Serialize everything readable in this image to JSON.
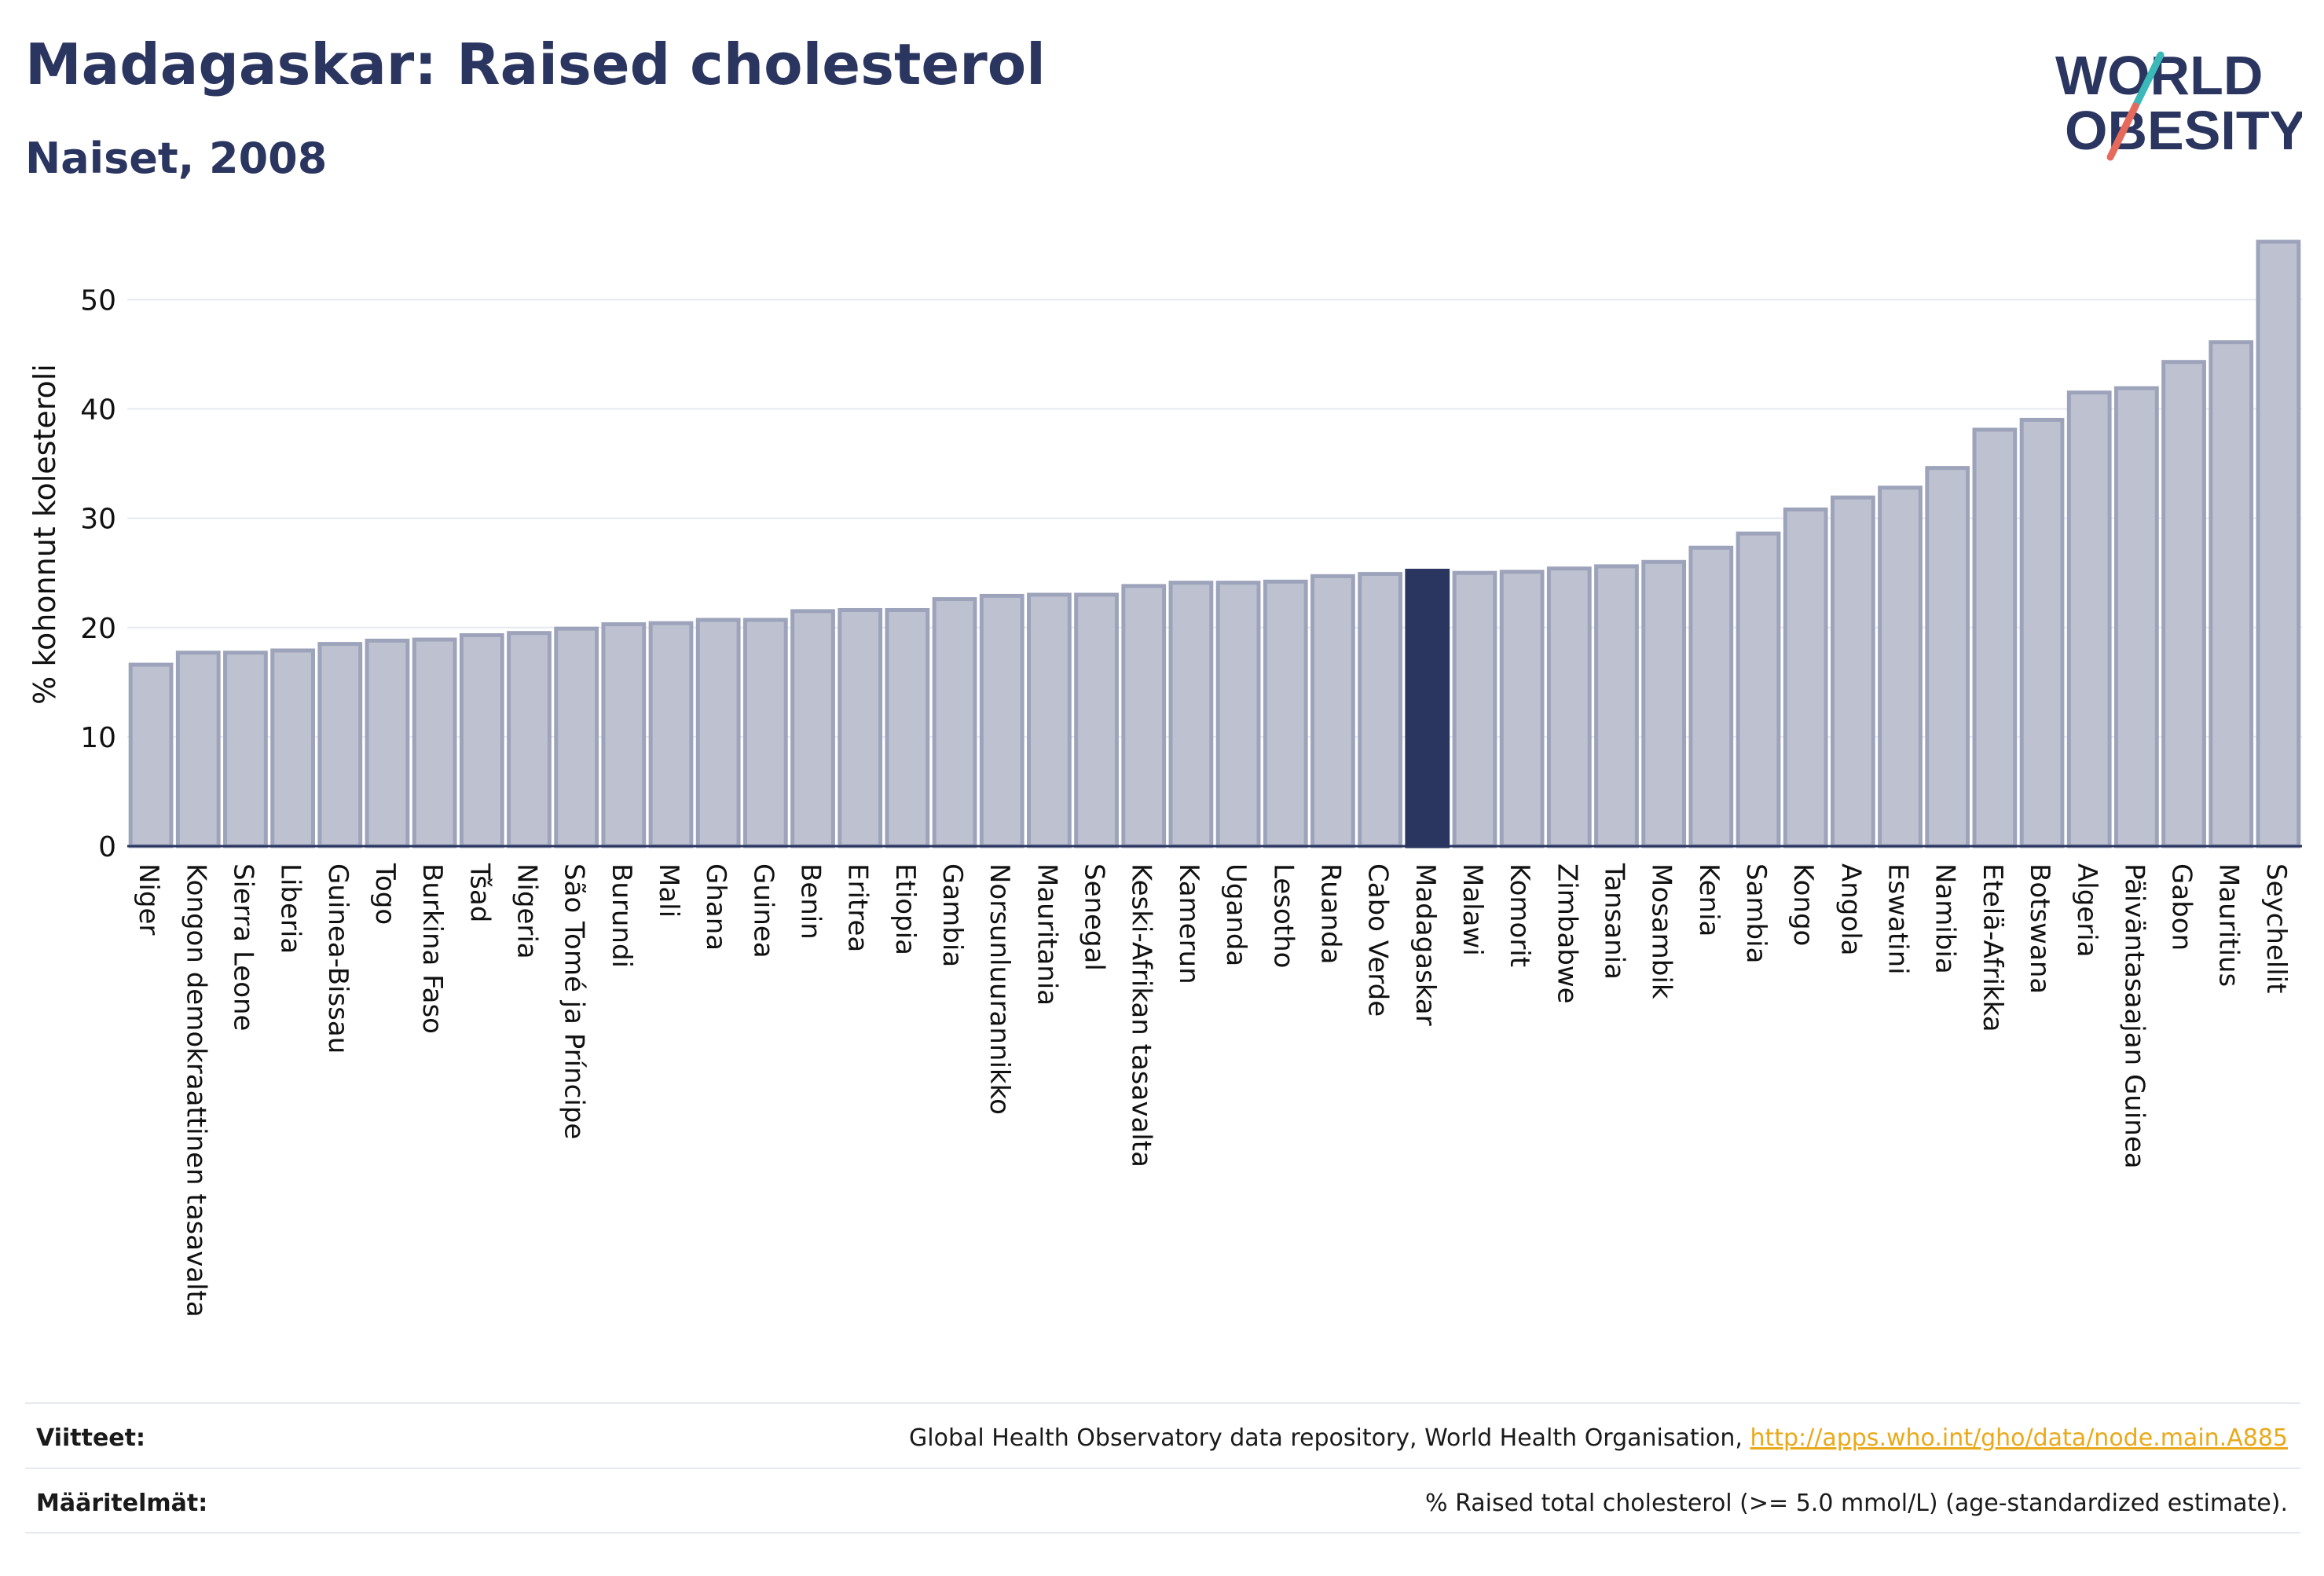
{
  "header": {
    "title": "Madagaskar: Raised cholesterol",
    "subtitle": "Naiset, 2008"
  },
  "logo": {
    "line1": "WORLD",
    "line2": "OBESITY",
    "icon": "world-obesity-logo"
  },
  "colors": {
    "bar": "#bec2d0",
    "bar_border": "#9da3ba",
    "highlight": "#2a3560",
    "text": "#2a3560",
    "grid": "#e6e9f0",
    "link": "#e9a91a",
    "logo_teal": "#3bb8b8",
    "logo_coral": "#e66a5c"
  },
  "chart_data": {
    "type": "bar",
    "ylabel": "% kohonnut kolesteroli",
    "ylim": [
      0,
      57
    ],
    "yticks": [
      0,
      10,
      20,
      30,
      40,
      50
    ],
    "grid": true,
    "highlight": "Madagaskar",
    "categories": [
      "Niger",
      "Kongon demokraattinen tasavalta",
      "Sierra Leone",
      "Liberia",
      "Guinea-Bissau",
      "Togo",
      "Burkina Faso",
      "Tšad",
      "Nigeria",
      "São Tomé ja Príncipe",
      "Burundi",
      "Mali",
      "Ghana",
      "Guinea",
      "Benin",
      "Eritrea",
      "Etiopia",
      "Gambia",
      "Norsunluurannikko",
      "Mauritania",
      "Senegal",
      "Keski-Afrikan tasavalta",
      "Kamerun",
      "Uganda",
      "Lesotho",
      "Ruanda",
      "Cabo Verde",
      "Madagaskar",
      "Malawi",
      "Komorit",
      "Zimbabwe",
      "Tansania",
      "Mosambik",
      "Kenia",
      "Sambia",
      "Kongo",
      "Angola",
      "Eswatini",
      "Namibia",
      "Etelä-Afrikka",
      "Botswana",
      "Algeria",
      "Päiväntasaajan Guinea",
      "Gabon",
      "Mauritius",
      "Seychellit"
    ],
    "values": [
      16.6,
      17.7,
      17.7,
      17.9,
      18.5,
      18.8,
      18.9,
      19.3,
      19.5,
      19.9,
      20.3,
      20.4,
      20.7,
      20.7,
      21.5,
      21.6,
      21.6,
      22.6,
      22.9,
      23.0,
      23.0,
      23.8,
      24.1,
      24.1,
      24.2,
      24.7,
      24.9,
      25.2,
      25.0,
      25.1,
      25.4,
      25.6,
      26.0,
      27.3,
      28.6,
      30.8,
      31.9,
      32.8,
      34.6,
      38.1,
      39.0,
      41.5,
      41.9,
      44.3,
      46.1,
      55.3
    ]
  },
  "footer": {
    "sources_label": "Viitteet:",
    "sources_text": "Global Health Observatory data repository, World Health Organisation, ",
    "sources_link": "http://apps.who.int/gho/data/node.main.A885",
    "definitions_label": "Määritelmät:",
    "definitions_text": "% Raised total cholesterol (>= 5.0 mmol/L) (age-standardized estimate)."
  }
}
